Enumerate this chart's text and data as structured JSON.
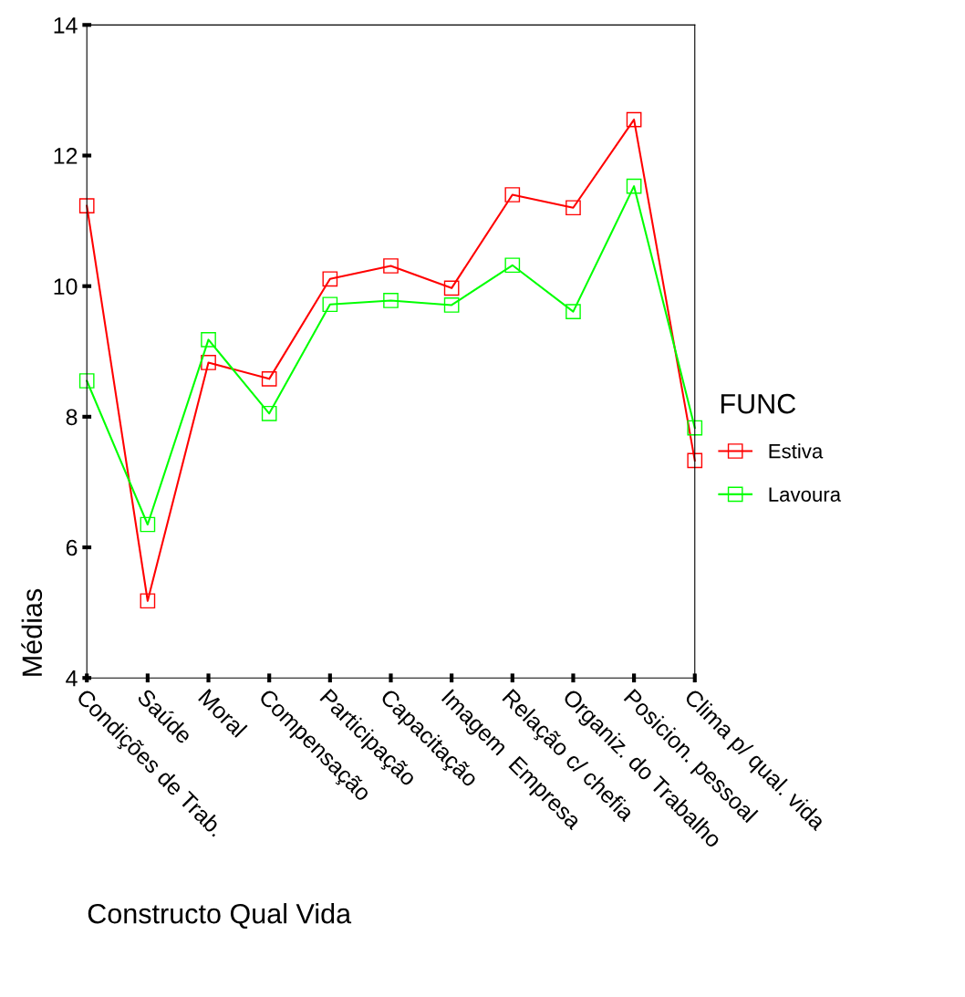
{
  "chart_data": {
    "type": "line",
    "xlabel": "Constructo Qual Vida",
    "ylabel": "Médias",
    "legend_title": "FUNC",
    "legend": "right",
    "marker": "square",
    "line_style": "solid",
    "grid": false,
    "categories": [
      "Condições de Trab.",
      "Saúde",
      "Moral",
      "Compensação",
      "Participação",
      "Capacitação",
      "Imagem  Empresa",
      "Relação c/ chefia",
      "Organiz. do Trabalho",
      "Posicion. pessoal",
      "Clima p/ qual. vida"
    ],
    "ylim": [
      4,
      14
    ],
    "yticks": [
      4,
      6,
      8,
      10,
      12,
      14
    ],
    "series": [
      {
        "name": "Estiva",
        "color": "#ff0000",
        "values": [
          11.23,
          5.18,
          8.83,
          8.58,
          10.11,
          10.31,
          9.97,
          11.4,
          11.2,
          12.55,
          7.33
        ]
      },
      {
        "name": "Lavoura",
        "color": "#00ff00",
        "values": [
          8.55,
          6.35,
          9.18,
          8.05,
          9.72,
          9.78,
          9.71,
          10.32,
          9.61,
          11.53,
          7.83
        ]
      }
    ]
  }
}
